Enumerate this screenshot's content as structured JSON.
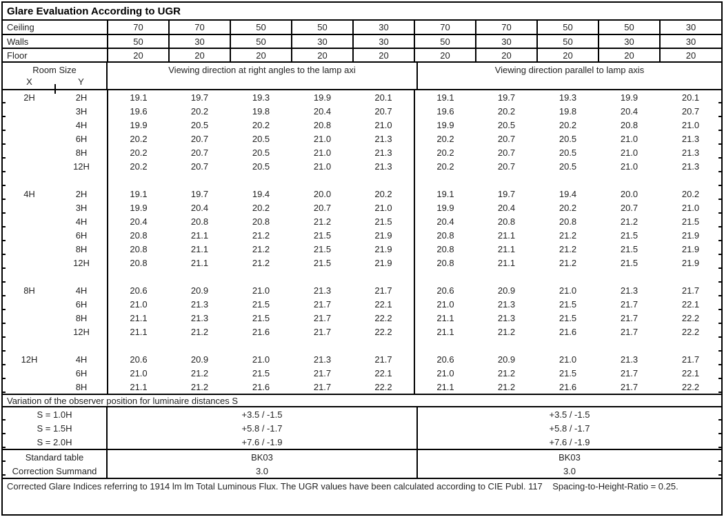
{
  "title": "Glare Evaluation According to UGR",
  "surfaces": {
    "rows": [
      {
        "label": "Ceiling",
        "values": [
          "70",
          "70",
          "50",
          "50",
          "30",
          "70",
          "70",
          "50",
          "50",
          "30"
        ]
      },
      {
        "label": "Walls",
        "values": [
          "50",
          "30",
          "50",
          "30",
          "30",
          "50",
          "30",
          "50",
          "30",
          "30"
        ]
      },
      {
        "label": "Floor",
        "values": [
          "20",
          "20",
          "20",
          "20",
          "20",
          "20",
          "20",
          "20",
          "20",
          "20"
        ]
      }
    ]
  },
  "header": {
    "room_size": "Room Size",
    "x_label": "X",
    "y_label": "Y",
    "left_title": "Viewing direction at right angles to the lamp axi",
    "right_title": "Viewing direction parallel to lamp axis"
  },
  "body": {
    "blocks": [
      {
        "x": "2H",
        "rows": [
          {
            "y": "2H",
            "values": [
              "19.1",
              "19.7",
              "19.3",
              "19.9",
              "20.1",
              "19.1",
              "19.7",
              "19.3",
              "19.9",
              "20.1"
            ]
          },
          {
            "y": "3H",
            "values": [
              "19.6",
              "20.2",
              "19.8",
              "20.4",
              "20.7",
              "19.6",
              "20.2",
              "19.8",
              "20.4",
              "20.7"
            ]
          },
          {
            "y": "4H",
            "values": [
              "19.9",
              "20.5",
              "20.2",
              "20.8",
              "21.0",
              "19.9",
              "20.5",
              "20.2",
              "20.8",
              "21.0"
            ]
          },
          {
            "y": "6H",
            "values": [
              "20.2",
              "20.7",
              "20.5",
              "21.0",
              "21.3",
              "20.2",
              "20.7",
              "20.5",
              "21.0",
              "21.3"
            ]
          },
          {
            "y": "8H",
            "values": [
              "20.2",
              "20.7",
              "20.5",
              "21.0",
              "21.3",
              "20.2",
              "20.7",
              "20.5",
              "21.0",
              "21.3"
            ]
          },
          {
            "y": "12H",
            "values": [
              "20.2",
              "20.7",
              "20.5",
              "21.0",
              "21.3",
              "20.2",
              "20.7",
              "20.5",
              "21.0",
              "21.3"
            ]
          }
        ]
      },
      {
        "x": "4H",
        "rows": [
          {
            "y": "2H",
            "values": [
              "19.1",
              "19.7",
              "19.4",
              "20.0",
              "20.2",
              "19.1",
              "19.7",
              "19.4",
              "20.0",
              "20.2"
            ]
          },
          {
            "y": "3H",
            "values": [
              "19.9",
              "20.4",
              "20.2",
              "20.7",
              "21.0",
              "19.9",
              "20.4",
              "20.2",
              "20.7",
              "21.0"
            ]
          },
          {
            "y": "4H",
            "values": [
              "20.4",
              "20.8",
              "20.8",
              "21.2",
              "21.5",
              "20.4",
              "20.8",
              "20.8",
              "21.2",
              "21.5"
            ]
          },
          {
            "y": "6H",
            "values": [
              "20.8",
              "21.1",
              "21.2",
              "21.5",
              "21.9",
              "20.8",
              "21.1",
              "21.2",
              "21.5",
              "21.9"
            ]
          },
          {
            "y": "8H",
            "values": [
              "20.8",
              "21.1",
              "21.2",
              "21.5",
              "21.9",
              "20.8",
              "21.1",
              "21.2",
              "21.5",
              "21.9"
            ]
          },
          {
            "y": "12H",
            "values": [
              "20.8",
              "21.1",
              "21.2",
              "21.5",
              "21.9",
              "20.8",
              "21.1",
              "21.2",
              "21.5",
              "21.9"
            ]
          }
        ]
      },
      {
        "x": "8H",
        "rows": [
          {
            "y": "4H",
            "values": [
              "20.6",
              "20.9",
              "21.0",
              "21.3",
              "21.7",
              "20.6",
              "20.9",
              "21.0",
              "21.3",
              "21.7"
            ]
          },
          {
            "y": "6H",
            "values": [
              "21.0",
              "21.3",
              "21.5",
              "21.7",
              "22.1",
              "21.0",
              "21.3",
              "21.5",
              "21.7",
              "22.1"
            ]
          },
          {
            "y": "8H",
            "values": [
              "21.1",
              "21.3",
              "21.5",
              "21.7",
              "22.2",
              "21.1",
              "21.3",
              "21.5",
              "21.7",
              "22.2"
            ]
          },
          {
            "y": "12H",
            "values": [
              "21.1",
              "21.2",
              "21.6",
              "21.7",
              "22.2",
              "21.1",
              "21.2",
              "21.6",
              "21.7",
              "22.2"
            ]
          }
        ]
      },
      {
        "x": "12H",
        "rows": [
          {
            "y": "4H",
            "values": [
              "20.6",
              "20.9",
              "21.0",
              "21.3",
              "21.7",
              "20.6",
              "20.9",
              "21.0",
              "21.3",
              "21.7"
            ]
          },
          {
            "y": "6H",
            "values": [
              "21.0",
              "21.2",
              "21.5",
              "21.7",
              "22.1",
              "21.0",
              "21.2",
              "21.5",
              "21.7",
              "22.1"
            ]
          },
          {
            "y": "8H",
            "values": [
              "21.1",
              "21.2",
              "21.6",
              "21.7",
              "22.2",
              "21.1",
              "21.2",
              "21.6",
              "21.7",
              "22.2"
            ]
          }
        ]
      }
    ]
  },
  "variation": {
    "title": "Variation of the observer position for luminaire distances S",
    "rows": [
      {
        "label": "S = 1.0H",
        "left": "+3.5 / -1.5",
        "right": "+3.5 / -1.5"
      },
      {
        "label": "S = 1.5H",
        "left": "+5.8 / -1.7",
        "right": "+5.8 / -1.7"
      },
      {
        "label": "S = 2.0H",
        "left": "+7.6 / -1.9",
        "right": "+7.6 / -1.9"
      }
    ]
  },
  "summary": {
    "rows": [
      {
        "label": "Standard table",
        "left": "BK03",
        "right": "BK03"
      },
      {
        "label": "Correction Summand",
        "left": "3.0",
        "right": "3.0"
      }
    ]
  },
  "footer": "Corrected Glare Indices referring to 1914 lm lm Total Luminous Flux. The UGR values have been calculated according to CIE Publ. 117    Spacing-to-Height-Ratio = 0.25."
}
